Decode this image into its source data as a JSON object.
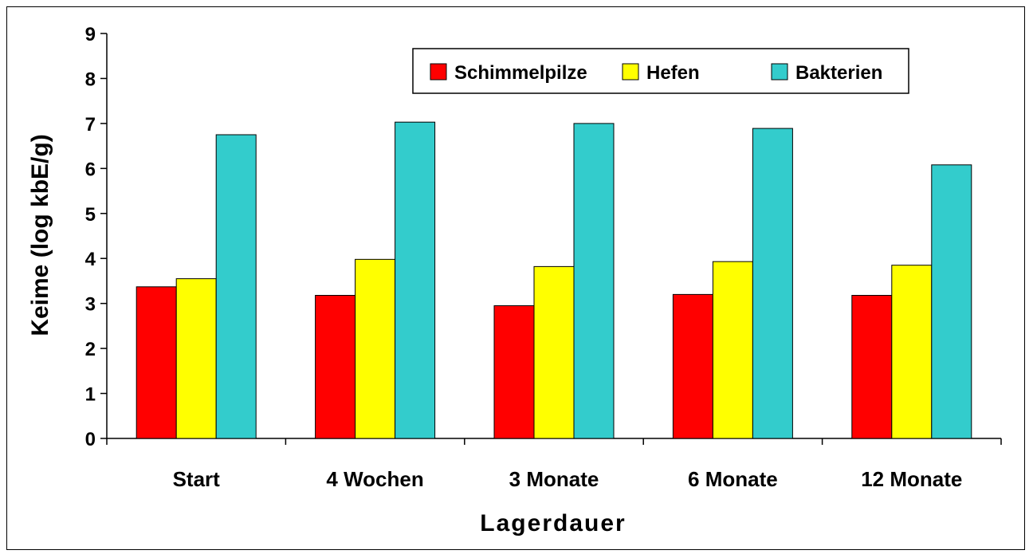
{
  "chart_data": {
    "type": "bar",
    "xlabel": "Lagerdauer",
    "ylabel": "Keime (log kbE/g)",
    "ylim": [
      0,
      9
    ],
    "yticks": [
      0,
      1,
      2,
      3,
      4,
      5,
      6,
      7,
      8,
      9
    ],
    "grid": false,
    "legend_position": "top-right",
    "categories": [
      "Start",
      "4 Wochen",
      "3 Monate",
      "6 Monate",
      "12 Monate"
    ],
    "series": [
      {
        "name": "Schimmelpilze",
        "color": "#ff0000",
        "values": [
          3.37,
          3.18,
          2.95,
          3.2,
          3.18
        ]
      },
      {
        "name": "Hefen",
        "color": "#ffff00",
        "values": [
          3.55,
          3.98,
          3.82,
          3.93,
          3.85
        ]
      },
      {
        "name": "Bakterien",
        "color": "#33cccc",
        "values": [
          6.75,
          7.03,
          7.0,
          6.89,
          6.08
        ]
      }
    ]
  }
}
